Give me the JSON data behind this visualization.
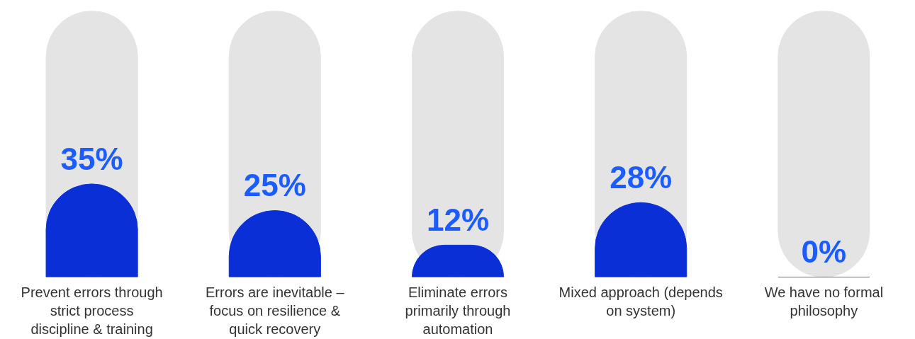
{
  "chart_data": {
    "type": "bar",
    "categories": [
      "Prevent errors through strict process discipline & training",
      "Errors are inevitable – focus on resilience & quick recovery",
      "Eliminate errors primarily through automation",
      "Mixed approach (depends on system)",
      "We have no formal philosophy"
    ],
    "values": [
      35,
      25,
      12,
      28,
      0
    ],
    "color": "#0a2fd6",
    "value_labels": [
      "35%",
      "25%",
      "12%",
      "28%",
      "0%"
    ],
    "bands": [
      {
        "axis": "y",
        "from": 0,
        "to": 100,
        "color": "#e4e4e4"
      }
    ],
    "grid": false,
    "tick_labels": "x"
  }
}
